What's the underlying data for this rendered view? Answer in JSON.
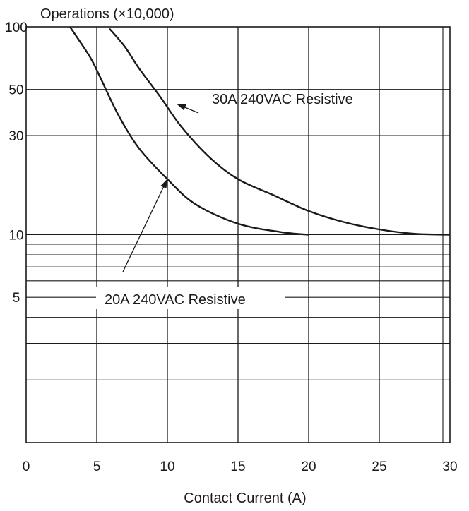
{
  "chart_data": {
    "type": "line",
    "ylabel": "Operations (×10,000)",
    "xlabel": "Contact Current (A)",
    "xlim": [
      0,
      30
    ],
    "ylim": [
      1,
      100
    ],
    "y_scale": "log",
    "x_ticks": [
      "0",
      "5",
      "10",
      "15",
      "20",
      "25",
      "30"
    ],
    "x_tick_values": [
      0,
      5,
      10,
      15,
      20,
      25,
      30
    ],
    "y_ticks": [
      "100",
      "50",
      "30",
      "10",
      "5"
    ],
    "y_tick_values": [
      100,
      50,
      30,
      10,
      5
    ],
    "grid": true,
    "series": [
      {
        "name": "20A 240VAC Resistive",
        "x": [
          3.1,
          4.5,
          5.2,
          6.5,
          8,
          10,
          12,
          15,
          18,
          20
        ],
        "y": [
          100,
          72,
          58,
          38,
          26,
          18.5,
          14,
          11.3,
          10.3,
          10
        ]
      },
      {
        "name": "30A 240VAC Resistive",
        "x": [
          5.9,
          7,
          8,
          9.5,
          11,
          13,
          15,
          17.5,
          20,
          22.5,
          25,
          27.5,
          30
        ],
        "y": [
          98,
          80,
          63,
          46,
          33,
          23.5,
          18.5,
          15.5,
          13,
          11.5,
          10.6,
          10.1,
          10
        ]
      }
    ],
    "annotations": [
      {
        "text": "30A 240VAC Resistive",
        "series": 1,
        "x": 10,
        "y": 40
      },
      {
        "text": "20A 240VAC Resistive",
        "series": 0,
        "x": 10,
        "y": 19
      }
    ]
  }
}
